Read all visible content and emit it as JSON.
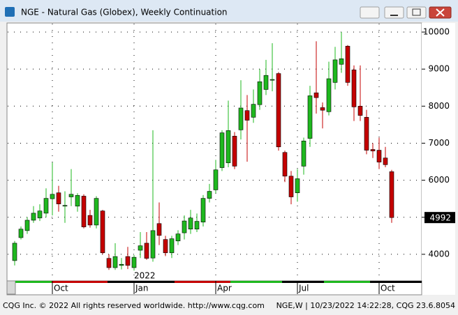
{
  "window": {
    "title": "NGE - Natural Gas (Globex), Weekly Continuation",
    "footer_left": "CQG Inc. © 2022 All rights reserved worldwide. http://www.cqg.com",
    "footer_right": "NGE,W | 10/23/2022 14:22:28, CQG 23.6.8054"
  },
  "chart_data": {
    "type": "candlestick",
    "year_label": "2022",
    "categories": [
      null,
      null,
      null,
      null,
      null,
      null,
      "Oct",
      null,
      null,
      null,
      null,
      null,
      null,
      null,
      null,
      null,
      null,
      null,
      null,
      "Jan",
      null,
      null,
      null,
      null,
      null,
      null,
      null,
      null,
      null,
      null,
      null,
      null,
      "Apr",
      null,
      null,
      null,
      null,
      null,
      null,
      null,
      null,
      null,
      null,
      null,
      null,
      "Jul",
      null,
      null,
      null,
      null,
      null,
      null,
      null,
      null,
      null,
      null,
      null,
      null,
      "Oct",
      null,
      null
    ],
    "open": [
      3830,
      4450,
      4640,
      4920,
      4980,
      5110,
      5500,
      5660,
      5300,
      5550,
      5300,
      5570,
      5050,
      4790,
      5170,
      3890,
      3640,
      3700,
      3940,
      3640,
      4110,
      4300,
      3900,
      4830,
      4400,
      4040,
      4360,
      4580,
      4680,
      4680,
      4870,
      5510,
      5740,
      6340,
      6470,
      7190,
      7360,
      7880,
      7700,
      8040,
      8450,
      8700,
      8880,
      6750,
      6110,
      5660,
      6380,
      7130,
      8360,
      7960,
      7850,
      8640,
      9130,
      9620,
      8980,
      8000,
      7700,
      6830,
      6810,
      6600,
      6230
    ],
    "high": [
      4360,
      4750,
      5000,
      5300,
      5350,
      5780,
      6480,
      5850,
      5700,
      6300,
      5650,
      5620,
      5200,
      5570,
      5200,
      4000,
      4300,
      3900,
      4200,
      3980,
      4600,
      4600,
      7350,
      5400,
      4500,
      4500,
      4650,
      5050,
      5200,
      5100,
      5600,
      5900,
      6550,
      7350,
      8150,
      7300,
      8700,
      8300,
      8450,
      9000,
      9250,
      9700,
      8920,
      6800,
      6250,
      6300,
      7150,
      8550,
      9750,
      8100,
      9200,
      9600,
      10000,
      9650,
      9100,
      9100,
      7900,
      7000,
      7150,
      6900,
      6280
    ],
    "low": [
      3700,
      4400,
      4550,
      4850,
      4900,
      5000,
      5050,
      5150,
      4850,
      5300,
      5150,
      4700,
      4720,
      4700,
      4000,
      3580,
      3580,
      3590,
      3600,
      3560,
      3900,
      3850,
      3800,
      4250,
      3950,
      3900,
      4250,
      4400,
      4550,
      4600,
      4750,
      5400,
      5650,
      6250,
      6350,
      6300,
      7100,
      6500,
      7550,
      7900,
      8300,
      8400,
      6800,
      5950,
      5350,
      5420,
      6150,
      6900,
      7800,
      7400,
      7750,
      8450,
      8900,
      8550,
      7600,
      7600,
      6700,
      6600,
      6300,
      6350,
      4850
    ],
    "close": [
      4300,
      4680,
      4920,
      5110,
      5170,
      5510,
      5620,
      5360,
      5320,
      5620,
      5590,
      4740,
      4790,
      5510,
      4040,
      3640,
      3940,
      3730,
      3700,
      3920,
      4230,
      3890,
      4640,
      4510,
      4040,
      4420,
      4550,
      4900,
      4980,
      4890,
      5510,
      5700,
      6280,
      7280,
      7340,
      6380,
      7950,
      7620,
      8050,
      8660,
      8830,
      8720,
      6900,
      6110,
      5550,
      6040,
      7060,
      8280,
      8230,
      7890,
      8740,
      9250,
      9280,
      8640,
      7980,
      7750,
      6810,
      6790,
      6490,
      6420,
      4992
    ],
    "up_color": "#1fb81f",
    "down_color": "#c40000",
    "ylim": [
      3283,
      10245
    ],
    "yticks": [
      4000,
      5000,
      6000,
      7000,
      8000,
      9000,
      10000
    ],
    "grid": true
  }
}
